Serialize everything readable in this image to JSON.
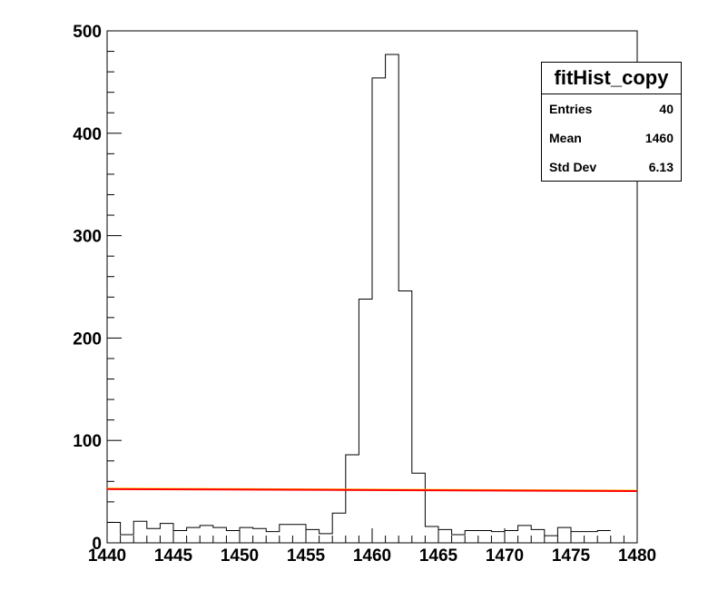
{
  "chart_data": {
    "type": "histogram",
    "title": "",
    "xlabel": "",
    "ylabel": "",
    "xlim": [
      1440,
      1480
    ],
    "ylim": [
      0,
      500
    ],
    "bin_width": 1,
    "bin_edges_start": 1440,
    "values": [
      20,
      8,
      21,
      14,
      19,
      12,
      15,
      17,
      15,
      12,
      15,
      14,
      11,
      18,
      18,
      13,
      9,
      29,
      86,
      238,
      454,
      477,
      246,
      68,
      16,
      13,
      8,
      12,
      12,
      11,
      12,
      17,
      13,
      7,
      15,
      11,
      11,
      12
    ],
    "x_ticks": [
      1440,
      1445,
      1450,
      1455,
      1460,
      1465,
      1470,
      1475,
      1480
    ],
    "y_ticks": [
      0,
      100,
      200,
      300,
      400,
      500
    ],
    "fit_lines": [
      {
        "color": "#ffcc00",
        "x": [
          1440,
          1480
        ],
        "y": [
          53,
          51
        ]
      },
      {
        "color": "#ff0000",
        "x": [
          1440,
          1480
        ],
        "y": [
          52.5,
          50.5
        ]
      }
    ],
    "stats": {
      "title": "fitHist_copy",
      "rows": [
        {
          "label": "Entries",
          "value": "40"
        },
        {
          "label": "Mean",
          "value": "1460"
        },
        {
          "label": "Std Dev",
          "value": "6.13"
        }
      ]
    },
    "grid": false,
    "legend_position": "top-right"
  }
}
